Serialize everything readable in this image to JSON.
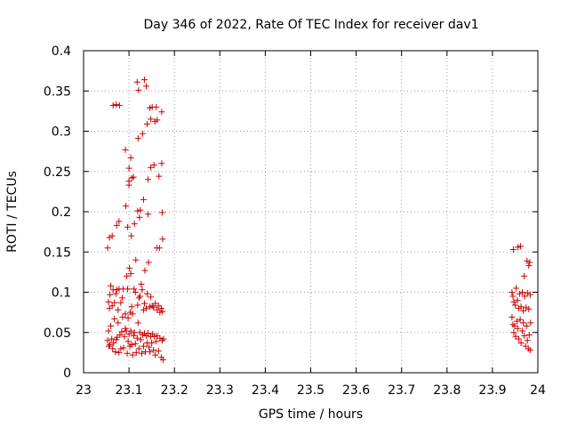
{
  "chart_data": {
    "type": "scatter",
    "title": "Day 346 of 2022, Rate Of TEC Index for receiver dav1",
    "xlabel": "GPS time / hours",
    "ylabel": "ROTI / TECUs",
    "xlim": [
      23,
      24
    ],
    "ylim": [
      0,
      0.4
    ],
    "xticks": [
      "23",
      "23.1",
      "23.2",
      "23.3",
      "23.4",
      "23.5",
      "23.6",
      "23.7",
      "23.8",
      "23.9",
      "24"
    ],
    "yticks": [
      "0",
      "0.05",
      "0.1",
      "0.15",
      "0.2",
      "0.25",
      "0.3",
      "0.35",
      "0.4"
    ],
    "grid": true,
    "marker": "+",
    "color": "#cc0000",
    "points": [
      [
        23.053,
        0.155
      ],
      [
        23.057,
        0.168
      ],
      [
        23.063,
        0.17
      ],
      [
        23.073,
        0.183
      ],
      [
        23.078,
        0.188
      ],
      [
        23.065,
        0.332
      ],
      [
        23.072,
        0.333
      ],
      [
        23.079,
        0.332
      ],
      [
        23.093,
        0.207
      ],
      [
        23.092,
        0.277
      ],
      [
        23.097,
        0.181
      ],
      [
        23.1,
        0.238
      ],
      [
        23.1,
        0.233
      ],
      [
        23.1,
        0.254
      ],
      [
        23.104,
        0.267
      ],
      [
        23.105,
        0.17
      ],
      [
        23.106,
        0.242
      ],
      [
        23.11,
        0.243
      ],
      [
        23.112,
        0.185
      ],
      [
        23.118,
        0.361
      ],
      [
        23.121,
        0.351
      ],
      [
        23.119,
        0.201
      ],
      [
        23.12,
        0.291
      ],
      [
        23.123,
        0.193
      ],
      [
        23.125,
        0.202
      ],
      [
        23.13,
        0.297
      ],
      [
        23.132,
        0.215
      ],
      [
        23.134,
        0.364
      ],
      [
        23.138,
        0.356
      ],
      [
        23.14,
        0.309
      ],
      [
        23.142,
        0.24
      ],
      [
        23.142,
        0.197
      ],
      [
        23.146,
        0.329
      ],
      [
        23.148,
        0.255
      ],
      [
        23.148,
        0.315
      ],
      [
        23.151,
        0.33
      ],
      [
        23.155,
        0.258
      ],
      [
        23.157,
        0.312
      ],
      [
        23.16,
        0.33
      ],
      [
        23.161,
        0.155
      ],
      [
        23.162,
        0.314
      ],
      [
        23.166,
        0.244
      ],
      [
        23.167,
        0.155
      ],
      [
        23.172,
        0.324
      ],
      [
        23.172,
        0.26
      ],
      [
        23.173,
        0.199
      ],
      [
        23.174,
        0.166
      ],
      [
        23.055,
        0.088
      ],
      [
        23.057,
        0.08
      ],
      [
        23.058,
        0.097
      ],
      [
        23.06,
        0.108
      ],
      [
        23.063,
        0.083
      ],
      [
        23.065,
        0.103
      ],
      [
        23.068,
        0.087
      ],
      [
        23.071,
        0.098
      ],
      [
        23.073,
        0.103
      ],
      [
        23.076,
        0.078
      ],
      [
        23.078,
        0.104
      ],
      [
        23.082,
        0.087
      ],
      [
        23.085,
        0.093
      ],
      [
        23.087,
        0.104
      ],
      [
        23.092,
        0.073
      ],
      [
        23.095,
        0.12
      ],
      [
        23.097,
        0.104
      ],
      [
        23.098,
        0.068
      ],
      [
        23.101,
        0.13
      ],
      [
        23.103,
        0.075
      ],
      [
        23.104,
        0.123
      ],
      [
        23.106,
        0.082
      ],
      [
        23.108,
        0.073
      ],
      [
        23.111,
        0.104
      ],
      [
        23.114,
        0.1
      ],
      [
        23.115,
        0.14
      ],
      [
        23.119,
        0.084
      ],
      [
        23.122,
        0.093
      ],
      [
        23.124,
        0.095
      ],
      [
        23.127,
        0.11
      ],
      [
        23.129,
        0.103
      ],
      [
        23.132,
        0.078
      ],
      [
        23.134,
        0.086
      ],
      [
        23.135,
        0.127
      ],
      [
        23.138,
        0.08
      ],
      [
        23.14,
        0.098
      ],
      [
        23.143,
        0.137
      ],
      [
        23.146,
        0.082
      ],
      [
        23.148,
        0.094
      ],
      [
        23.151,
        0.083
      ],
      [
        23.154,
        0.081
      ],
      [
        23.158,
        0.086
      ],
      [
        23.162,
        0.078
      ],
      [
        23.165,
        0.083
      ],
      [
        23.168,
        0.075
      ],
      [
        23.171,
        0.08
      ],
      [
        23.174,
        0.076
      ],
      [
        23.053,
        0.04
      ],
      [
        23.055,
        0.052
      ],
      [
        23.056,
        0.033
      ],
      [
        23.058,
        0.035
      ],
      [
        23.06,
        0.058
      ],
      [
        23.062,
        0.042
      ],
      [
        23.064,
        0.03
      ],
      [
        23.066,
        0.037
      ],
      [
        23.068,
        0.067
      ],
      [
        23.07,
        0.026
      ],
      [
        23.072,
        0.041
      ],
      [
        23.074,
        0.044
      ],
      [
        23.076,
        0.062
      ],
      [
        23.078,
        0.025
      ],
      [
        23.08,
        0.047
      ],
      [
        23.082,
        0.03
      ],
      [
        23.084,
        0.051
      ],
      [
        23.086,
        0.069
      ],
      [
        23.088,
        0.031
      ],
      [
        23.09,
        0.045
      ],
      [
        23.092,
        0.055
      ],
      [
        23.094,
        0.052
      ],
      [
        23.096,
        0.024
      ],
      [
        23.098,
        0.039
      ],
      [
        23.1,
        0.048
      ],
      [
        23.102,
        0.033
      ],
      [
        23.104,
        0.052
      ],
      [
        23.106,
        0.035
      ],
      [
        23.108,
        0.022
      ],
      [
        23.11,
        0.046
      ],
      [
        23.112,
        0.05
      ],
      [
        23.114,
        0.036
      ],
      [
        23.116,
        0.025
      ],
      [
        23.118,
        0.043
      ],
      [
        23.12,
        0.062
      ],
      [
        23.122,
        0.03
      ],
      [
        23.124,
        0.05
      ],
      [
        23.126,
        0.041
      ],
      [
        23.128,
        0.024
      ],
      [
        23.13,
        0.047
      ],
      [
        23.132,
        0.033
      ],
      [
        23.134,
        0.049
      ],
      [
        23.136,
        0.026
      ],
      [
        23.138,
        0.046
      ],
      [
        23.14,
        0.037
      ],
      [
        23.142,
        0.049
      ],
      [
        23.144,
        0.032
      ],
      [
        23.146,
        0.026
      ],
      [
        23.148,
        0.045
      ],
      [
        23.15,
        0.037
      ],
      [
        23.152,
        0.048
      ],
      [
        23.154,
        0.028
      ],
      [
        23.156,
        0.045
      ],
      [
        23.158,
        0.022
      ],
      [
        23.16,
        0.039
      ],
      [
        23.162,
        0.046
      ],
      [
        23.165,
        0.027
      ],
      [
        23.168,
        0.043
      ],
      [
        23.171,
        0.019
      ],
      [
        23.173,
        0.04
      ],
      [
        23.175,
        0.016
      ],
      [
        23.176,
        0.042
      ],
      [
        23.946,
        0.153
      ],
      [
        23.956,
        0.156
      ],
      [
        23.962,
        0.157
      ],
      [
        23.97,
        0.12
      ],
      [
        23.976,
        0.139
      ],
      [
        23.98,
        0.133
      ],
      [
        23.982,
        0.137
      ],
      [
        23.943,
        0.1
      ],
      [
        23.945,
        0.095
      ],
      [
        23.947,
        0.088
      ],
      [
        23.95,
        0.084
      ],
      [
        23.952,
        0.105
      ],
      [
        23.955,
        0.09
      ],
      [
        23.958,
        0.08
      ],
      [
        23.96,
        0.098
      ],
      [
        23.963,
        0.082
      ],
      [
        23.966,
        0.1
      ],
      [
        23.968,
        0.077
      ],
      [
        23.971,
        0.095
      ],
      [
        23.974,
        0.081
      ],
      [
        23.977,
        0.099
      ],
      [
        23.98,
        0.079
      ],
      [
        23.983,
        0.097
      ],
      [
        23.943,
        0.069
      ],
      [
        23.945,
        0.06
      ],
      [
        23.947,
        0.05
      ],
      [
        23.949,
        0.058
      ],
      [
        23.951,
        0.045
      ],
      [
        23.954,
        0.064
      ],
      [
        23.956,
        0.055
      ],
      [
        23.958,
        0.042
      ],
      [
        23.961,
        0.066
      ],
      [
        23.963,
        0.037
      ],
      [
        23.966,
        0.052
      ],
      [
        23.968,
        0.062
      ],
      [
        23.97,
        0.046
      ],
      [
        23.973,
        0.033
      ],
      [
        23.975,
        0.058
      ],
      [
        23.977,
        0.04
      ],
      [
        23.979,
        0.03
      ],
      [
        23.981,
        0.047
      ],
      [
        23.983,
        0.028
      ],
      [
        23.984,
        0.062
      ]
    ]
  }
}
